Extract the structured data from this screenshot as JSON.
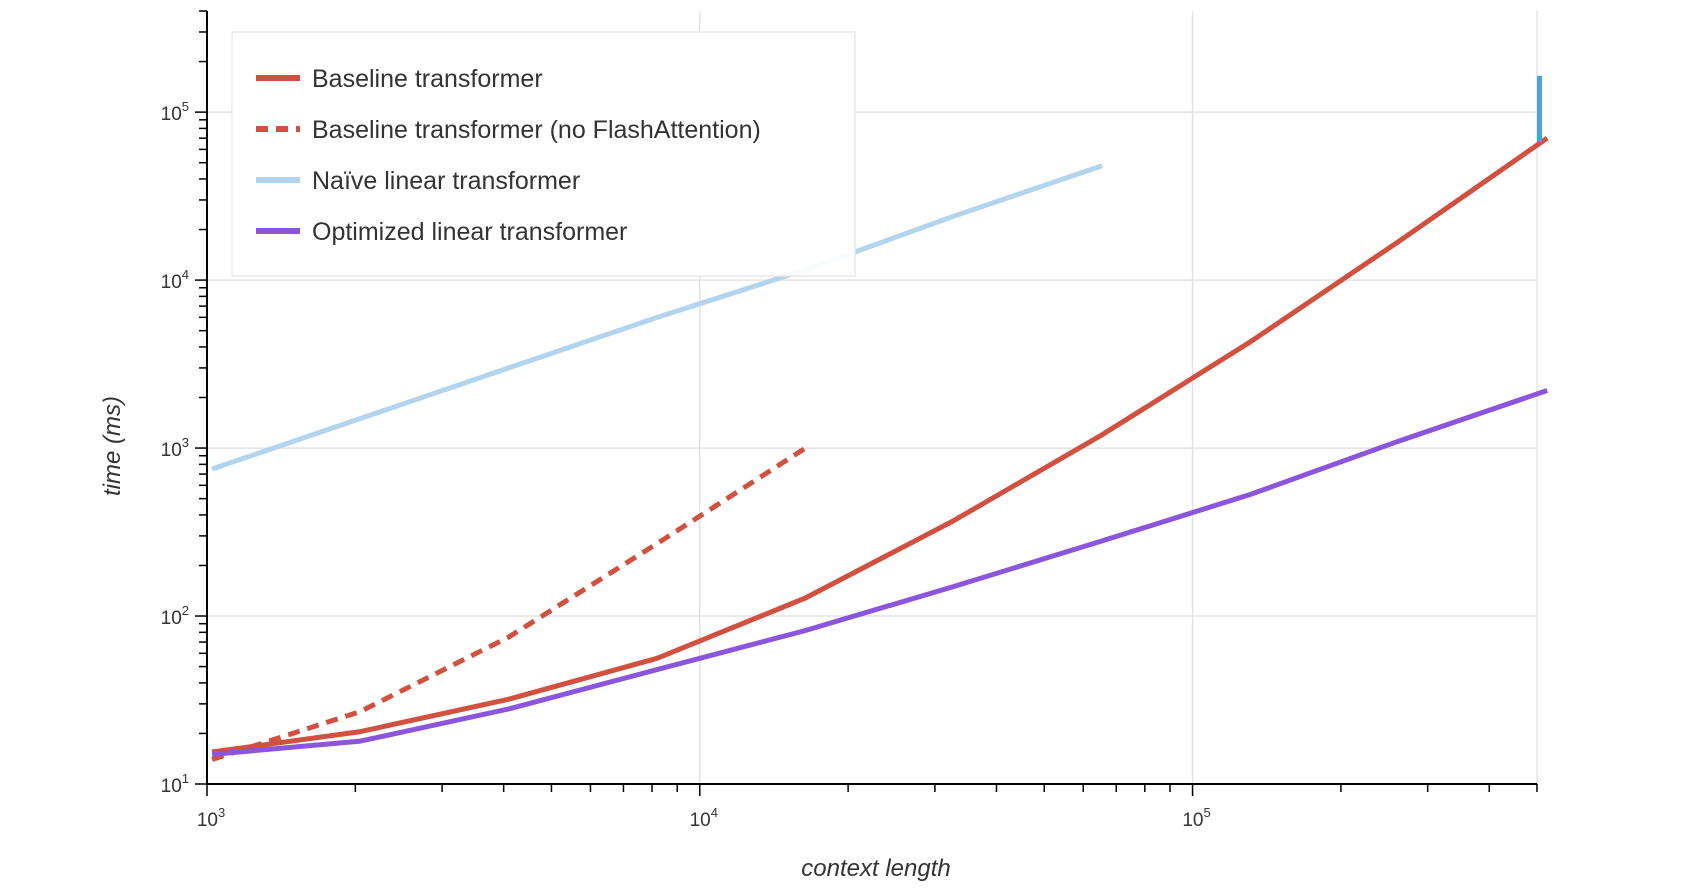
{
  "chart_data": {
    "type": "line",
    "xlabel": "context length",
    "ylabel": "time (ms)",
    "x_scale": "log",
    "y_scale": "log",
    "xlim": [
      1000,
      500000
    ],
    "ylim": [
      10,
      400000
    ],
    "grid": true,
    "legend_position": "top-left",
    "x_ticks": [
      {
        "value": 1000,
        "base": "10",
        "exp": "3"
      },
      {
        "value": 10000,
        "base": "10",
        "exp": "4"
      },
      {
        "value": 100000,
        "base": "10",
        "exp": "5"
      }
    ],
    "y_ticks": [
      {
        "value": 10,
        "base": "10",
        "exp": "1"
      },
      {
        "value": 100,
        "base": "10",
        "exp": "2"
      },
      {
        "value": 1000,
        "base": "10",
        "exp": "3"
      },
      {
        "value": 10000,
        "base": "10",
        "exp": "4"
      },
      {
        "value": 100000,
        "base": "10",
        "exp": "5"
      }
    ],
    "series": [
      {
        "name": "Baseline transformer",
        "color": "#d2503f",
        "style": "solid",
        "x": [
          1024,
          2048,
          4096,
          8192,
          16384,
          32768,
          65536,
          131072,
          262144,
          524288
        ],
        "y": [
          15.5,
          20.5,
          32,
          56,
          128,
          370,
          1200,
          4300,
          17000,
          70000
        ]
      },
      {
        "name": "Baseline transformer (no FlashAttention)",
        "color": "#d2503f",
        "style": "dashed",
        "x": [
          1024,
          2048,
          4096,
          8192,
          16384
        ],
        "y": [
          14,
          27,
          75,
          270,
          1000
        ]
      },
      {
        "name": "Naïve linear transformer",
        "color": "#b3d4ee",
        "style": "solid",
        "x": [
          1024,
          2048,
          4096,
          8192,
          16384,
          32768,
          65536
        ],
        "y": [
          750,
          1500,
          3000,
          6000,
          11500,
          24000,
          48000
        ]
      },
      {
        "name": "Optimized linear transformer",
        "color": "#8b55dd",
        "style": "solid",
        "x": [
          1024,
          2048,
          4096,
          8192,
          16384,
          32768,
          65536,
          131072,
          262144,
          524288
        ],
        "y": [
          15,
          18,
          28,
          48,
          82,
          150,
          280,
          530,
          1100,
          2200
        ]
      }
    ]
  }
}
